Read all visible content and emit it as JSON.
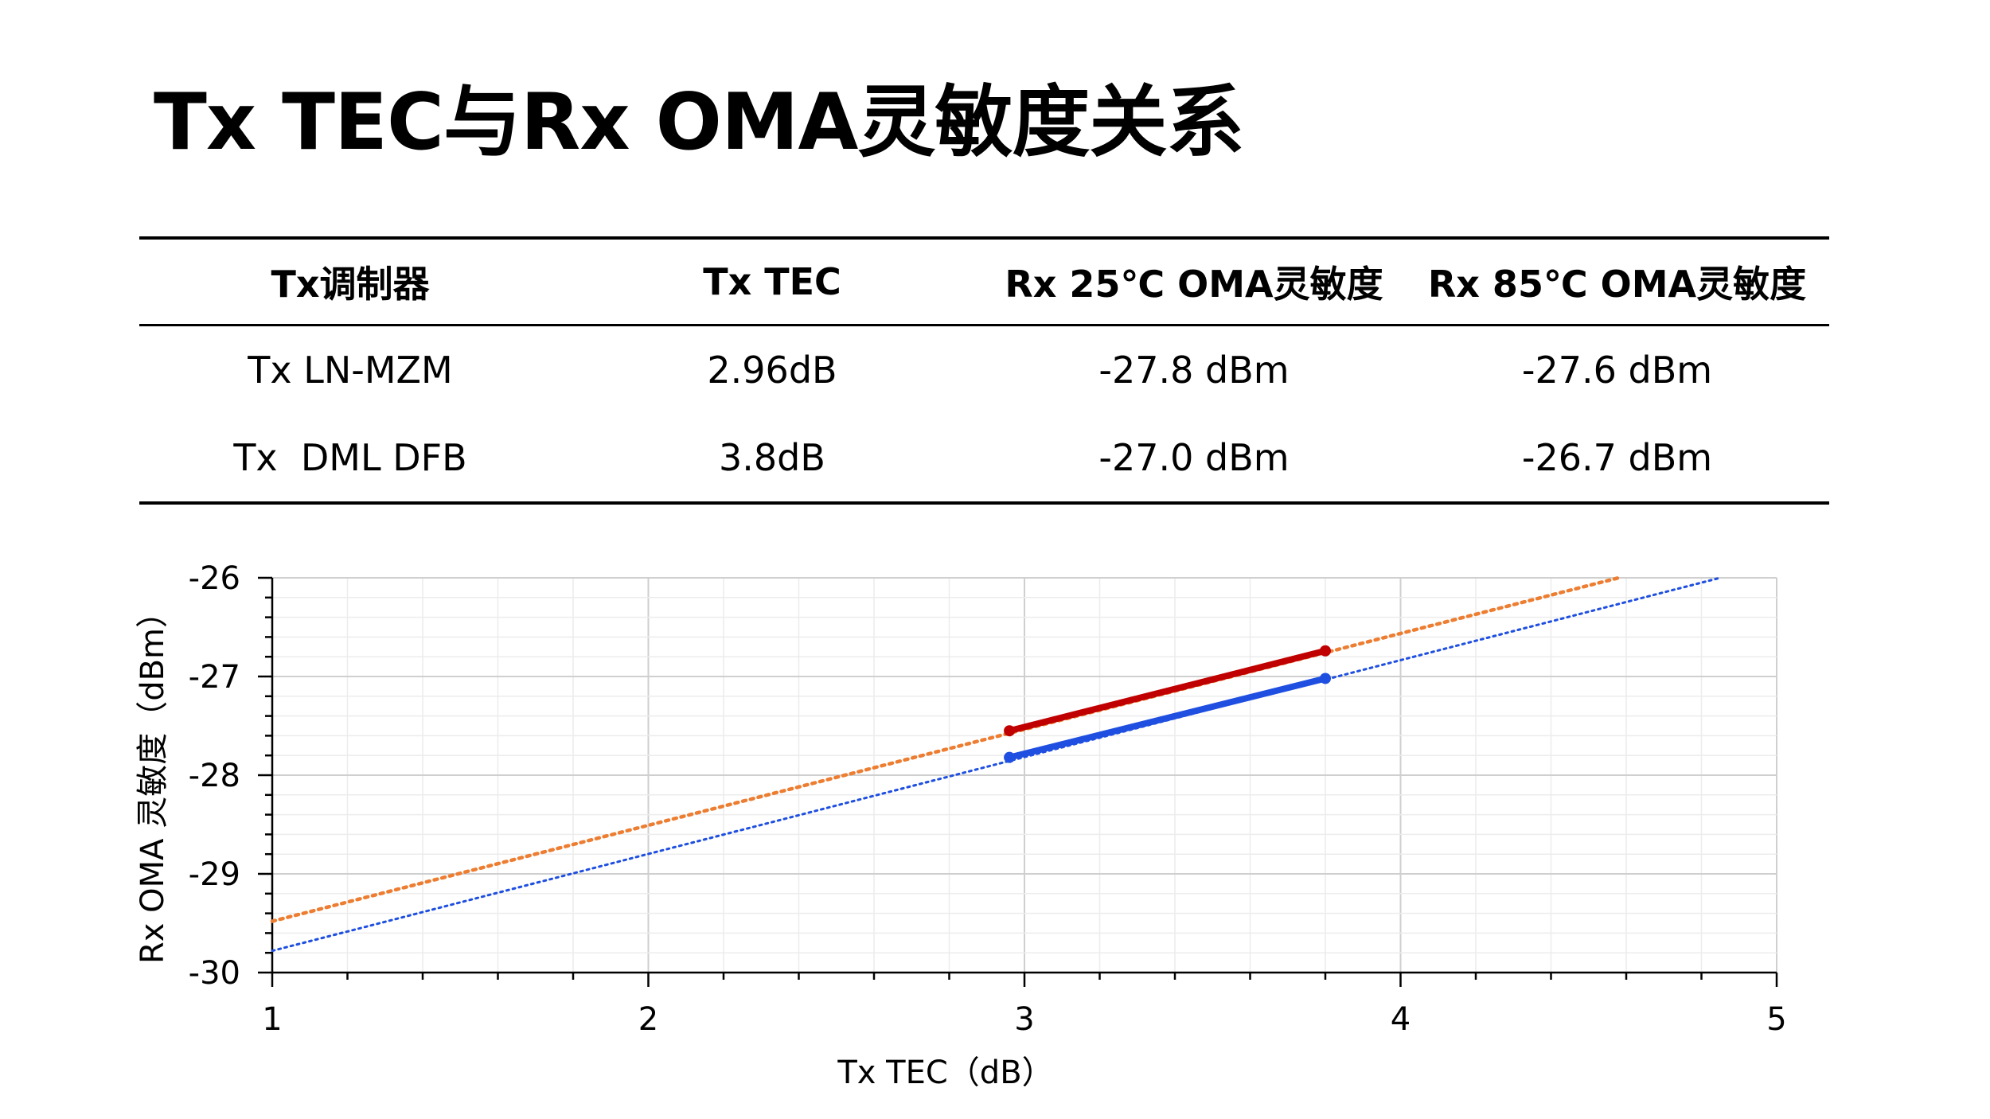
{
  "title": "Tx TEC与Rx OMA灵敏度关系",
  "table": {
    "headers": [
      "Tx调制器",
      "Tx TEC",
      "Rx 25℃ OMA灵敏度",
      "Rx 85℃ OMA灵敏度"
    ],
    "rows": [
      [
        "Tx LN-MZM",
        "2.96dB",
        "-27.8 dBm",
        "-27.6 dBm"
      ],
      [
        "Tx  DML DFB",
        "3.8dB",
        "-27.0 dBm",
        "-26.7 dBm"
      ]
    ]
  },
  "chart_data": {
    "type": "line",
    "xlabel": "Tx TEC（dB）",
    "ylabel": "Rx OMA 灵敏度（dBm）",
    "xlim": [
      1,
      5
    ],
    "ylim": [
      -30,
      -26
    ],
    "x_ticks": [
      "1",
      "2",
      "3",
      "4",
      "5"
    ],
    "y_ticks": [
      "-26",
      "-27",
      "-28",
      "-29",
      "-30"
    ],
    "grid": true,
    "series": [
      {
        "color": "#c00000",
        "x": [
          2.96,
          3.8
        ],
        "y": [
          -27.55,
          -26.74
        ],
        "style": "solid-with-markers"
      },
      {
        "color": "#1f4fe0",
        "x": [
          2.96,
          3.8
        ],
        "y": [
          -27.82,
          -27.02
        ],
        "style": "solid-with-markers"
      },
      {
        "color": "#ed7d31",
        "trendline": true,
        "x": [
          1,
          4.58
        ],
        "y": [
          -29.48,
          -26.0
        ],
        "style": "dotted"
      },
      {
        "color": "#1f4fe0",
        "trendline": true,
        "x": [
          1,
          4.85
        ],
        "y": [
          -29.78,
          -26.0
        ],
        "style": "dotted"
      }
    ]
  }
}
